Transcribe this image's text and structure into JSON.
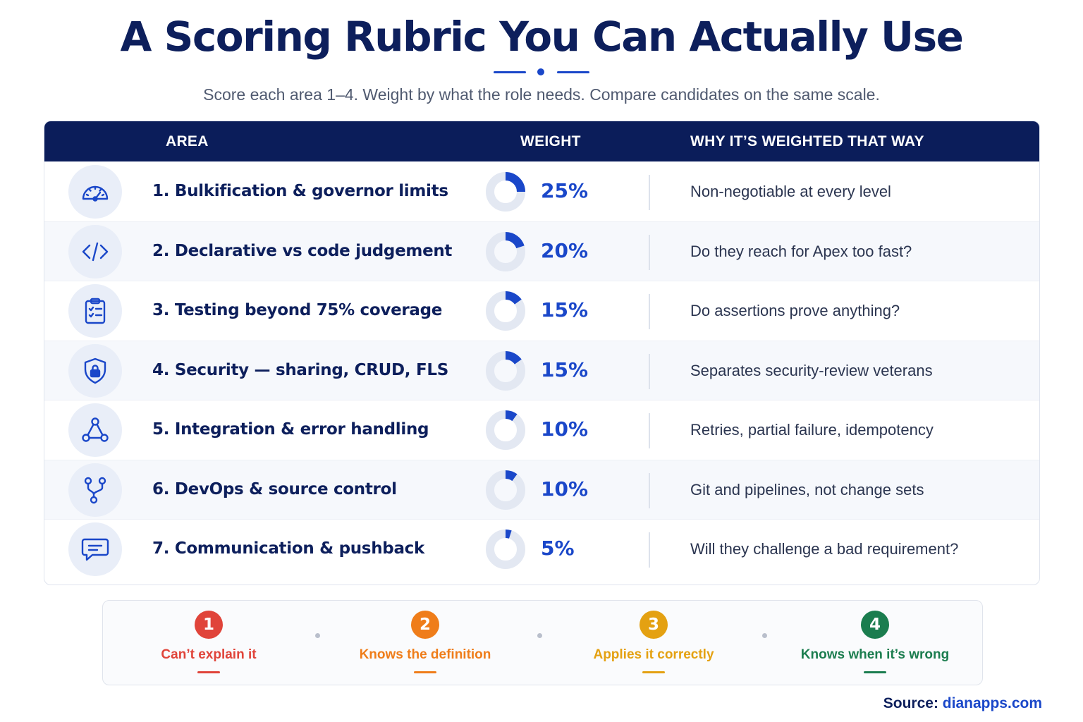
{
  "title": "A Scoring Rubric You Can Actually Use",
  "subtitle": "Score each area 1–4. Weight by what the role needs. Compare candidates on the same scale.",
  "table": {
    "headers": {
      "area": "AREA",
      "weight": "WEIGHT",
      "why": "WHY IT’S WEIGHTED THAT WAY"
    },
    "rows": [
      {
        "icon": "gauge-icon",
        "area": "1.  Bulkification & governor limits",
        "weight": 25,
        "weight_label": "25%",
        "why": "Non-negotiable at every level"
      },
      {
        "icon": "code-icon",
        "area": "2.  Declarative vs code judgement",
        "weight": 20,
        "weight_label": "20%",
        "why": "Do they reach for Apex too fast?"
      },
      {
        "icon": "checklist-icon",
        "area": "3.  Testing beyond 75% coverage",
        "weight": 15,
        "weight_label": "15%",
        "why": "Do assertions prove anything?"
      },
      {
        "icon": "shield-lock-icon",
        "area": "4.  Security — sharing, CRUD, FLS",
        "weight": 15,
        "weight_label": "15%",
        "why": "Separates security-review veterans"
      },
      {
        "icon": "network-icon",
        "area": "5.  Integration & error handling",
        "weight": 10,
        "weight_label": "10%",
        "why": "Retries, partial failure, idempotency"
      },
      {
        "icon": "git-branch-icon",
        "area": "6.  DevOps & source control",
        "weight": 10,
        "weight_label": "10%",
        "why": "Git and pipelines, not change sets"
      },
      {
        "icon": "chat-bubble-icon",
        "area": "7.  Communication & pushback",
        "weight": 5,
        "weight_label": "5%",
        "why": "Will they challenge a bad requirement?"
      }
    ]
  },
  "scale": [
    {
      "num": "1",
      "label": "Can’t explain it",
      "color": "#e0443a"
    },
    {
      "num": "2",
      "label": "Knows the definition",
      "color": "#ef7d1a"
    },
    {
      "num": "3",
      "label": "Applies it correctly",
      "color": "#e4a112"
    },
    {
      "num": "4",
      "label": "Knows when it’s wrong",
      "color": "#1b7d4f"
    }
  ],
  "source": {
    "label": "Source:",
    "url": "dianapps.com"
  },
  "colors": {
    "navy": "#0b1d5a",
    "accent": "#1a47c9",
    "track": "#e3e8f2"
  }
}
